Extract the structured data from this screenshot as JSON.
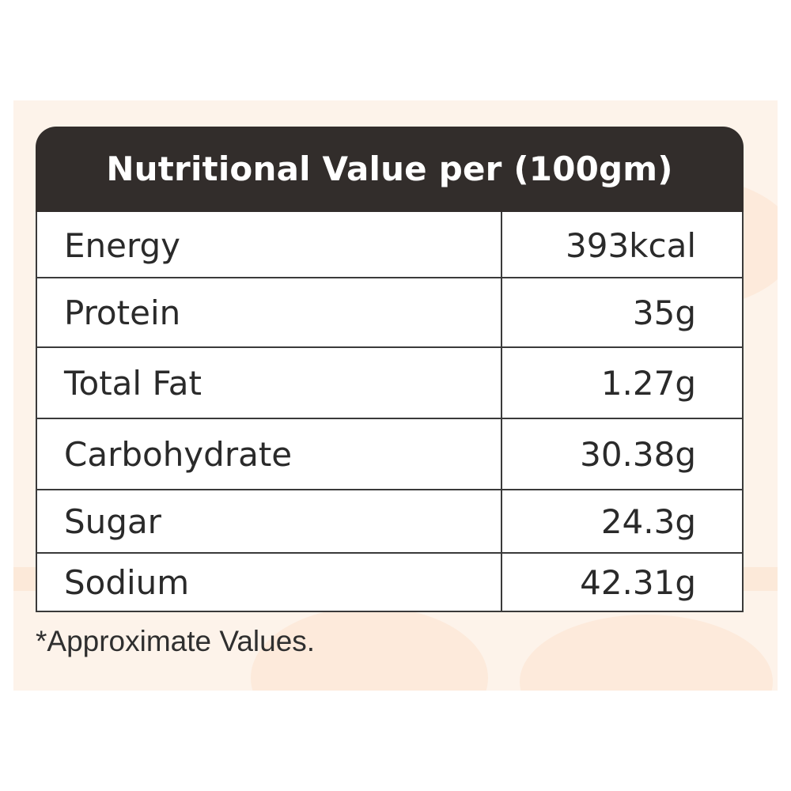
{
  "header": {
    "title": "Nutritional Value per (100gm)"
  },
  "table": {
    "rows": [
      {
        "name": "Energy",
        "value": "393kcal"
      },
      {
        "name": "Protein",
        "value": "35g"
      },
      {
        "name": "Total Fat",
        "value": "1.27g"
      },
      {
        "name": "Carbohydrate",
        "value": "30.38g"
      },
      {
        "name": "Sugar",
        "value": "24.3g"
      },
      {
        "name": "Sodium",
        "value": "42.31g"
      }
    ]
  },
  "footnote": "*Approximate Values.",
  "colors": {
    "header_background": "#322d2b",
    "header_text": "#ffffff",
    "border": "#3a3a3a",
    "background_tint": "#fdf3ea"
  }
}
